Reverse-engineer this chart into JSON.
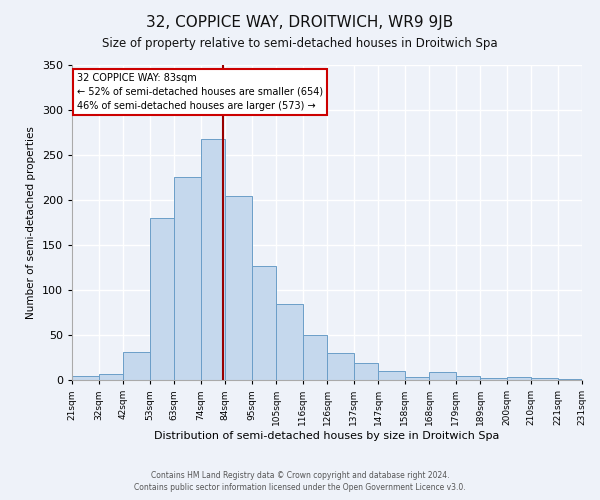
{
  "title": "32, COPPICE WAY, DROITWICH, WR9 9JB",
  "subtitle": "Size of property relative to semi-detached houses in Droitwich Spa",
  "xlabel": "Distribution of semi-detached houses by size in Droitwich Spa",
  "ylabel": "Number of semi-detached properties",
  "bin_labels": [
    "21sqm",
    "32sqm",
    "42sqm",
    "53sqm",
    "63sqm",
    "74sqm",
    "84sqm",
    "95sqm",
    "105sqm",
    "116sqm",
    "126sqm",
    "137sqm",
    "147sqm",
    "158sqm",
    "168sqm",
    "179sqm",
    "189sqm",
    "200sqm",
    "210sqm",
    "221sqm",
    "231sqm"
  ],
  "bin_edges": [
    21,
    32,
    42,
    53,
    63,
    74,
    84,
    95,
    105,
    116,
    126,
    137,
    147,
    158,
    168,
    179,
    189,
    200,
    210,
    221,
    231
  ],
  "bar_heights": [
    5,
    7,
    31,
    180,
    226,
    268,
    205,
    127,
    85,
    50,
    30,
    19,
    10,
    3,
    9,
    4,
    2,
    3,
    2,
    1
  ],
  "bar_color": "#c5d8ed",
  "bar_edge_color": "#6b9ec8",
  "property_value": 83,
  "vline_color": "#990000",
  "annotation_title": "32 COPPICE WAY: 83sqm",
  "annotation_line1": "← 52% of semi-detached houses are smaller (654)",
  "annotation_line2": "46% of semi-detached houses are larger (573) →",
  "annotation_box_facecolor": "#ffffff",
  "annotation_box_edgecolor": "#cc0000",
  "ylim": [
    0,
    350
  ],
  "yticks": [
    0,
    50,
    100,
    150,
    200,
    250,
    300,
    350
  ],
  "footer1": "Contains HM Land Registry data © Crown copyright and database right 2024.",
  "footer2": "Contains public sector information licensed under the Open Government Licence v3.0.",
  "background_color": "#eef2f9",
  "grid_color": "#ffffff"
}
